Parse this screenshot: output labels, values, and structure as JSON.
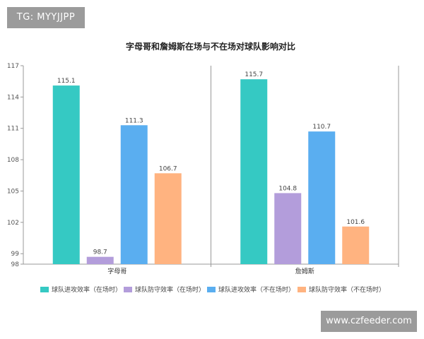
{
  "watermarks": {
    "top_left": "TG: MYYJJPP",
    "bottom_right": "www.czfeeder.com"
  },
  "chart_data": {
    "type": "bar",
    "title": "字母哥和詹姆斯在场与不在场对球队影响对比",
    "categories": [
      "字母哥",
      "詹姆斯"
    ],
    "series": [
      {
        "name": "球队进攻效率（在场时）",
        "color": "#35c9c3",
        "values": [
          115.1,
          115.7
        ]
      },
      {
        "name": "球队防守效率（在场时）",
        "color": "#b39ddb",
        "values": [
          98.7,
          104.8
        ]
      },
      {
        "name": "球队进攻效率（不在场时）",
        "color": "#5aaef0",
        "values": [
          111.3,
          110.7
        ]
      },
      {
        "name": "球队防守效率（不在场时）",
        "color": "#ffb380",
        "values": [
          106.7,
          101.6
        ]
      }
    ],
    "yticks": [
      98,
      99,
      102,
      105,
      108,
      111,
      114,
      117
    ],
    "ylim": [
      98,
      117
    ],
    "grid": false,
    "legend": "bottom"
  }
}
